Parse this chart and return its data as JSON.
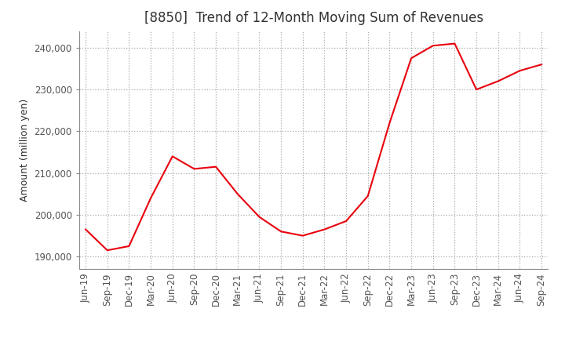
{
  "title": "[8850]  Trend of 12-Month Moving Sum of Revenues",
  "ylabel": "Amount (million yen)",
  "x_labels": [
    "Jun-19",
    "Sep-19",
    "Dec-19",
    "Mar-20",
    "Jun-20",
    "Sep-20",
    "Dec-20",
    "Mar-21",
    "Jun-21",
    "Sep-21",
    "Dec-21",
    "Mar-22",
    "Jun-22",
    "Sep-22",
    "Dec-22",
    "Mar-23",
    "Jun-23",
    "Sep-23",
    "Dec-23",
    "Mar-24",
    "Jun-24",
    "Sep-24"
  ],
  "values": [
    196500,
    191500,
    192500,
    204000,
    214000,
    211000,
    211500,
    205000,
    199500,
    196000,
    195000,
    196500,
    198500,
    204500,
    222000,
    237500,
    240500,
    241000,
    230000,
    232000,
    234500,
    236000
  ],
  "line_color": "#e8000d",
  "bg_color": "#ffffff",
  "plot_bg_color": "#ffffff",
  "grid_color": "#aaaaaa",
  "ylim_min": 187000,
  "ylim_max": 244000,
  "yticks": [
    190000,
    200000,
    210000,
    220000,
    230000,
    240000
  ],
  "title_fontsize": 12,
  "label_fontsize": 9,
  "tick_fontsize": 8.5
}
